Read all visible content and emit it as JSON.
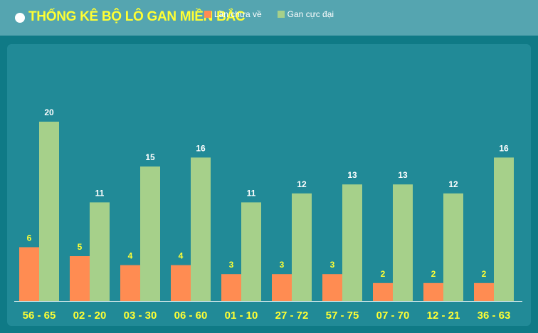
{
  "header": {
    "title": "THỐNG KÊ BỘ LÔ GAN MIỀN BẮC"
  },
  "colors": {
    "series_current": "#ff8c52",
    "series_max": "#a6d08a",
    "category_label": "#ffff33",
    "background": "#218a97"
  },
  "chart_data": {
    "type": "bar",
    "categories": [
      "56 - 65",
      "02 - 20",
      "03 - 30",
      "06 - 60",
      "01 - 10",
      "27 - 72",
      "57 - 75",
      "07 - 70",
      "12 - 21",
      "36 - 63"
    ],
    "series": [
      {
        "name": "Lần chưa về",
        "values": [
          6,
          5,
          4,
          4,
          3,
          3,
          3,
          2,
          2,
          2
        ]
      },
      {
        "name": "Gan cực đại",
        "values": [
          20,
          11,
          15,
          16,
          11,
          12,
          13,
          13,
          12,
          16
        ]
      }
    ],
    "title": "THỐNG KÊ BỘ LÔ GAN MIỀN BẮC",
    "ylim": [
      0,
      20
    ],
    "grid": false,
    "legend_position": "top-center"
  }
}
